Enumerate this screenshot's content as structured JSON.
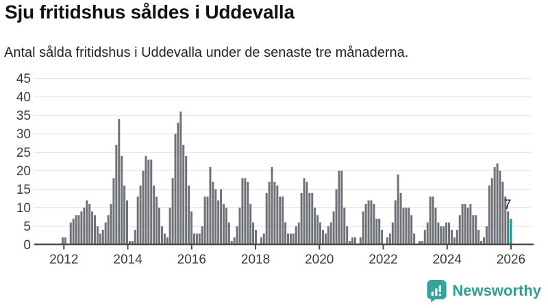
{
  "header": {
    "title": "Sju fritidshus såldes i Uddevalla",
    "subtitle": "Antal sålda fritidshus i Uddevalla under de senaste tre månaderna."
  },
  "chart_data": {
    "type": "bar",
    "title": "Sju fritidshus såldes i Uddevalla",
    "xlabel": "",
    "ylabel": "",
    "start_month": "2011-12",
    "end_month": "2025-11",
    "values": [
      2,
      2,
      0,
      6,
      7,
      8,
      8,
      9,
      10,
      12,
      11,
      9,
      8,
      5,
      3,
      4,
      6,
      8,
      11,
      18,
      27,
      34,
      24,
      16,
      12,
      1,
      1,
      4,
      13,
      16,
      20,
      24,
      23,
      23,
      16,
      13,
      10,
      5,
      3,
      2,
      10,
      18,
      30,
      33,
      36,
      27,
      24,
      16,
      9,
      3,
      3,
      3,
      5,
      13,
      13,
      21,
      17,
      15,
      12,
      15,
      11,
      10,
      6,
      1,
      2,
      5,
      10,
      18,
      18,
      17,
      11,
      6,
      4,
      0,
      2,
      3,
      14,
      17,
      21,
      17,
      16,
      13,
      13,
      6,
      3,
      3,
      3,
      5,
      6,
      14,
      18,
      17,
      14,
      14,
      10,
      8,
      6,
      4,
      3,
      5,
      6,
      9,
      15,
      20,
      20,
      10,
      5,
      1,
      2,
      2,
      0,
      2,
      9,
      11,
      12,
      12,
      11,
      7,
      7,
      4,
      0,
      2,
      3,
      6,
      12,
      19,
      14,
      10,
      10,
      10,
      8,
      3,
      0,
      1,
      1,
      4,
      6,
      13,
      13,
      10,
      6,
      5,
      5,
      6,
      6,
      4,
      2,
      4,
      8,
      11,
      11,
      10,
      11,
      8,
      8,
      4,
      1,
      2,
      5,
      16,
      18,
      21,
      22,
      20,
      17,
      13,
      9,
      7
    ],
    "highlight": {
      "index": 167,
      "value": 7,
      "label": "7"
    },
    "y_ticks": [
      0,
      5,
      10,
      15,
      20,
      25,
      30,
      35,
      40,
      45
    ],
    "x_ticks": [
      2012,
      2014,
      2016,
      2018,
      2020,
      2022,
      2024,
      2026
    ],
    "ylim": [
      0,
      45
    ],
    "grid": true,
    "legend": "none",
    "colors": {
      "bar": "#6E7177",
      "highlight": "#00A5A0",
      "grid": "#E4E4E4",
      "axis": "#4A4A4A",
      "tick_label": "#3A3A3A",
      "annotation": "#222222"
    }
  },
  "footer": {
    "brand": "Newsworthy",
    "brand_color": "#2E9D93",
    "logo_color": "#35A49B"
  }
}
